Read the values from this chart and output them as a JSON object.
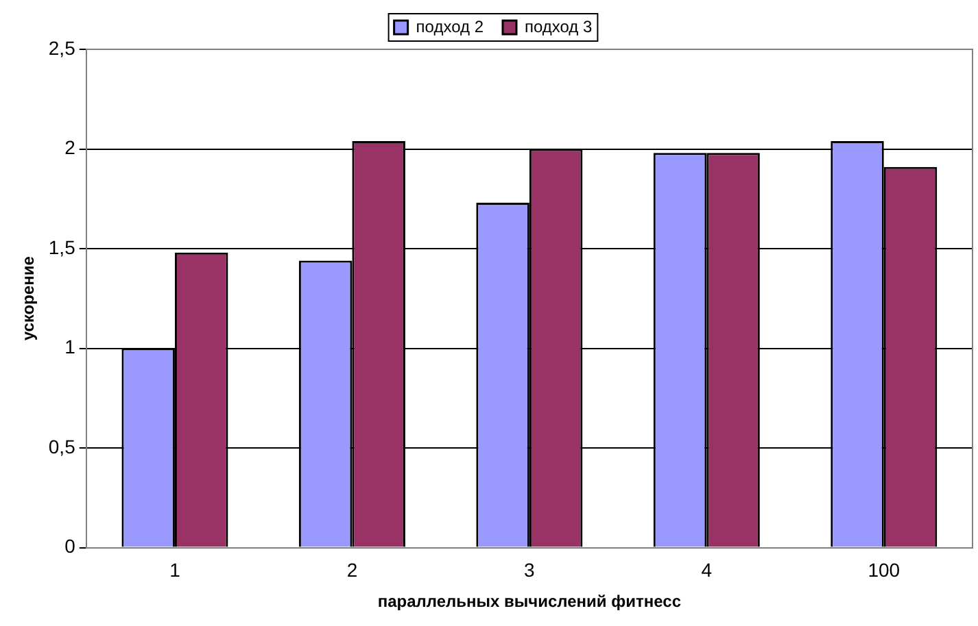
{
  "chart_data": {
    "type": "bar",
    "xlabel": "параллельных вычислений фитнесс",
    "ylabel": "ускорение",
    "categories": [
      "1",
      "2",
      "3",
      "4",
      "100"
    ],
    "series": [
      {
        "name": "подход 2",
        "color": "#9999ff",
        "values": [
          1.0,
          1.44,
          1.73,
          1.98,
          2.04
        ]
      },
      {
        "name": "подход 3",
        "color": "#993366",
        "values": [
          1.48,
          2.04,
          2.0,
          1.98,
          1.91
        ]
      }
    ],
    "ylim": [
      0,
      2.5
    ],
    "yticks": [
      {
        "value": 0,
        "label": "0"
      },
      {
        "value": 0.5,
        "label": "0,5"
      },
      {
        "value": 1,
        "label": "1"
      },
      {
        "value": 1.5,
        "label": "1,5"
      },
      {
        "value": 2,
        "label": "2"
      },
      {
        "value": 2.5,
        "label": "2,5"
      }
    ],
    "grid": "y",
    "legend": "top"
  }
}
